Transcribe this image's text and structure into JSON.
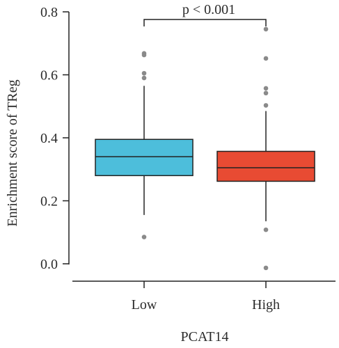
{
  "chart_data": {
    "type": "box",
    "title": "",
    "xlabel": "PCAT14",
    "ylabel": "Enrichment score of TReg",
    "ylim": [
      -0.03,
      0.8
    ],
    "yticks": [
      "0.0",
      "0.2",
      "0.4",
      "0.6",
      "0.8"
    ],
    "annotation": "p < 0.001",
    "grid": false,
    "categories": [
      "Low",
      "High"
    ],
    "series": [
      {
        "category": "Low",
        "color": "#4dbedb",
        "whisker_low": 0.155,
        "q1": 0.28,
        "median": 0.34,
        "q3": 0.395,
        "whisker_high": 0.565,
        "outliers": [
          0.668,
          0.663,
          0.605,
          0.59,
          0.085
        ]
      },
      {
        "category": "High",
        "color": "#e84b33",
        "whisker_low": 0.135,
        "q1": 0.262,
        "median": 0.305,
        "q3": 0.357,
        "whisker_high": 0.485,
        "outliers": [
          0.745,
          0.652,
          0.557,
          0.542,
          0.503,
          0.108,
          -0.013
        ]
      }
    ]
  }
}
